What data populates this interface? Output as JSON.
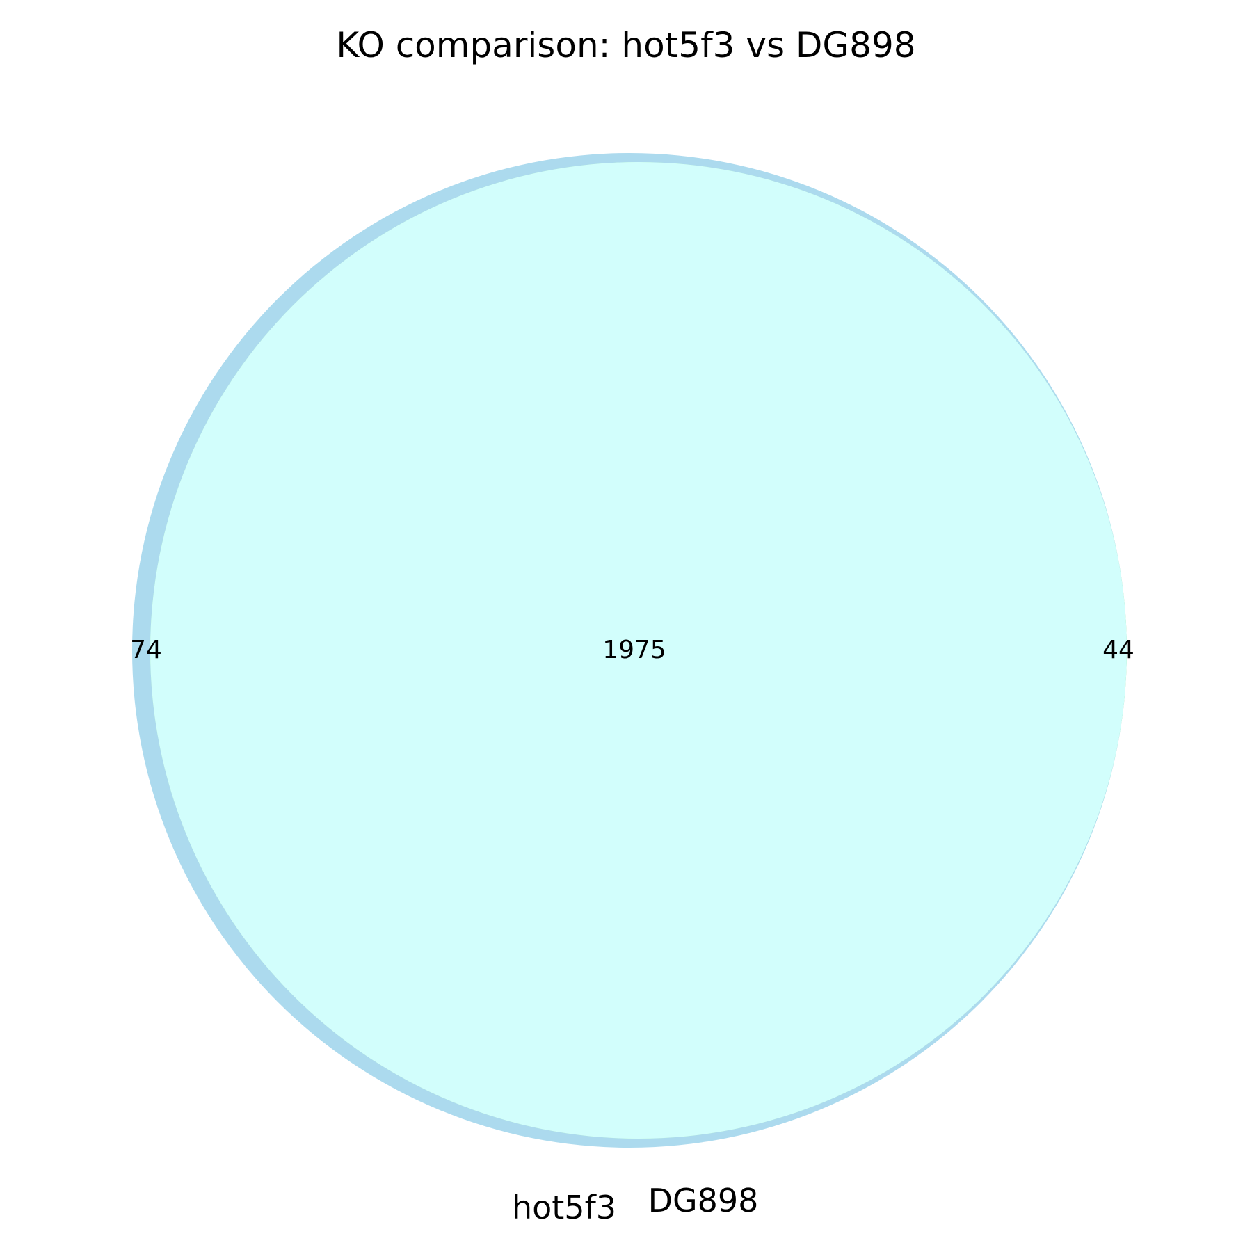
{
  "chart_data": {
    "type": "venn",
    "title": "KO comparison: hot5f3 vs DG898",
    "sets": [
      {
        "name": "hot5f3",
        "only_count": "74",
        "color": "#acdaee"
      },
      {
        "name": "DG898",
        "only_count": "44",
        "color": "#b1f4b1"
      }
    ],
    "intersection": {
      "count": "1975",
      "color": "#d2fefc"
    }
  }
}
